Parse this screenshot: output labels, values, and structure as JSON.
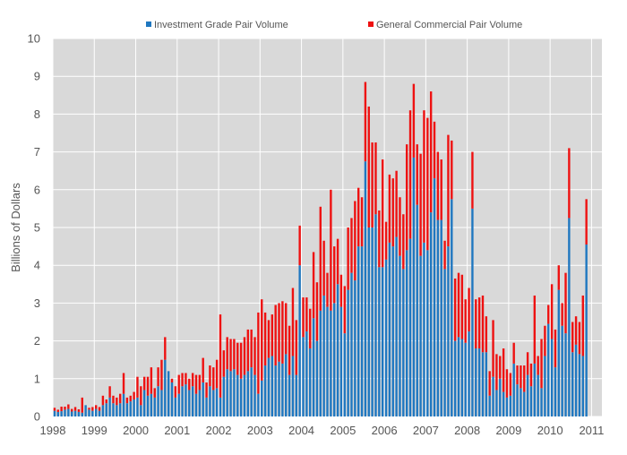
{
  "chart_data": {
    "type": "bar",
    "stacked": true,
    "ylabel": "Billions of Dollars",
    "ylim": [
      0,
      10
    ],
    "yticks": [
      "0",
      "1",
      "2",
      "3",
      "4",
      "5",
      "6",
      "7",
      "8",
      "9",
      "10"
    ],
    "xlim": [
      1998.0,
      2011.25
    ],
    "xticks": [
      "1998",
      "1999",
      "2000",
      "2001",
      "2002",
      "2003",
      "2004",
      "2005",
      "2006",
      "2007",
      "2008",
      "2009",
      "2010",
      "2011"
    ],
    "grid": true,
    "legend_position": "top",
    "period": "monthly",
    "start": "1998-01",
    "series": [
      {
        "name": "Investment Grade Pair Volume",
        "color": "#1f77c0",
        "values": [
          0.15,
          0.12,
          0.14,
          0.18,
          0.2,
          0.13,
          0.15,
          0.12,
          0.1,
          0.3,
          0.18,
          0.15,
          0.2,
          0.15,
          0.3,
          0.35,
          0.5,
          0.35,
          0.3,
          0.35,
          0.6,
          0.35,
          0.4,
          0.45,
          0.5,
          0.3,
          0.7,
          0.55,
          0.6,
          0.5,
          0.8,
          0.7,
          1.5,
          1.2,
          0.9,
          0.5,
          0.6,
          0.8,
          0.85,
          0.7,
          0.8,
          0.6,
          0.7,
          0.9,
          0.5,
          0.8,
          0.7,
          0.75,
          0.5,
          1.05,
          1.25,
          1.2,
          1.25,
          1.1,
          1.0,
          1.1,
          1.2,
          1.3,
          1.1,
          0.6,
          0.95,
          1.35,
          1.55,
          1.6,
          1.35,
          1.45,
          1.4,
          1.65,
          1.1,
          1.6,
          1.1,
          4.0,
          2.1,
          2.25,
          1.8,
          2.6,
          2.0,
          2.8,
          3.2,
          2.9,
          2.8,
          3.0,
          3.5,
          2.9,
          2.2,
          3.35,
          3.8,
          3.6,
          4.5,
          4.5,
          6.75,
          5.0,
          5.0,
          5.35,
          3.95,
          3.95,
          4.15,
          4.6,
          4.5,
          4.75,
          4.25,
          3.9,
          4.4,
          4.7,
          6.85,
          5.6,
          4.25,
          4.6,
          4.4,
          5.4,
          6.3,
          5.2,
          5.2,
          3.9,
          4.5,
          5.75,
          2.0,
          2.1,
          2.05,
          1.95,
          2.25,
          5.5,
          1.8,
          1.8,
          1.7,
          1.7,
          0.55,
          1.05,
          0.7,
          1.0,
          0.65,
          0.5,
          0.55,
          1.4,
          0.85,
          0.75,
          0.65,
          1.1,
          0.8,
          1.4,
          1.1,
          0.75,
          1.6,
          2.45,
          2.05,
          1.3,
          3.35,
          2.4,
          2.2,
          5.25,
          1.7,
          1.9,
          1.65,
          1.6,
          4.55
        ]
      },
      {
        "name": "General Commercial Pair Volume",
        "color": "#ee1111",
        "values": [
          0.08,
          0.06,
          0.12,
          0.08,
          0.12,
          0.07,
          0.1,
          0.07,
          0.4,
          0.0,
          0.05,
          0.1,
          0.1,
          0.1,
          0.25,
          0.1,
          0.3,
          0.2,
          0.2,
          0.25,
          0.55,
          0.15,
          0.15,
          0.2,
          0.55,
          0.5,
          0.35,
          0.5,
          0.7,
          0.25,
          0.5,
          0.8,
          0.6,
          0.0,
          0.1,
          0.3,
          0.5,
          0.35,
          0.3,
          0.3,
          0.35,
          0.5,
          0.4,
          0.65,
          0.4,
          0.55,
          0.6,
          0.75,
          2.2,
          0.7,
          0.85,
          0.85,
          0.8,
          0.85,
          0.95,
          1.0,
          1.1,
          1.0,
          1.0,
          2.15,
          2.15,
          1.4,
          1.0,
          1.1,
          1.6,
          1.55,
          1.65,
          1.35,
          1.3,
          1.8,
          1.45,
          1.05,
          1.05,
          0.9,
          1.05,
          1.75,
          1.55,
          2.75,
          1.45,
          0.9,
          3.2,
          1.5,
          1.2,
          0.85,
          1.25,
          1.65,
          1.45,
          2.1,
          1.55,
          1.3,
          2.1,
          3.2,
          2.25,
          1.9,
          1.5,
          2.85,
          1.0,
          1.8,
          1.8,
          1.75,
          1.55,
          1.45,
          2.8,
          3.4,
          1.95,
          1.6,
          2.7,
          3.5,
          3.5,
          3.2,
          1.5,
          1.8,
          1.6,
          0.75,
          2.95,
          1.55,
          1.65,
          1.7,
          1.7,
          1.15,
          1.15,
          1.5,
          1.3,
          1.35,
          1.5,
          0.95,
          0.65,
          1.5,
          0.95,
          0.6,
          1.15,
          0.75,
          0.6,
          0.55,
          0.5,
          0.6,
          0.7,
          0.6,
          0.6,
          1.8,
          0.5,
          1.3,
          0.8,
          0.5,
          1.45,
          1.0,
          0.65,
          0.6,
          1.6,
          1.85,
          0.8,
          0.75,
          0.85,
          1.6,
          1.2
        ]
      }
    ]
  }
}
